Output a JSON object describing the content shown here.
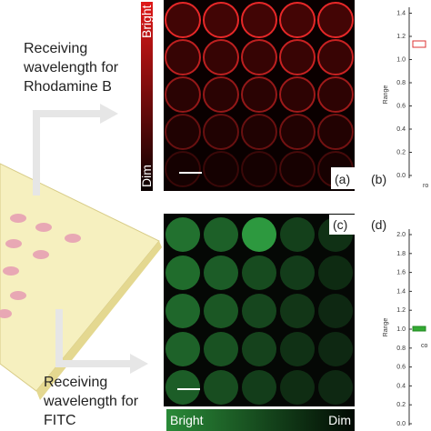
{
  "left_labels": {
    "rhodamine": [
      "Receiving",
      "wavelength for",
      "Rhodamine B"
    ],
    "fitc": [
      "Receiving",
      "wavelength for",
      "FITC"
    ]
  },
  "colorbar_top": {
    "high": "Bright",
    "low": "Dim"
  },
  "colorbar_bottom": {
    "high": "Bright",
    "low": "Dim"
  },
  "panels": {
    "a": "(a)",
    "b": "(b)",
    "c": "(c)",
    "d": "(d)"
  },
  "plot_b": {
    "ylabel": "Range",
    "yticks": [
      "0.0",
      "0.2",
      "0.4",
      "0.6",
      "0.8",
      "1.0",
      "1.2",
      "1.4"
    ],
    "xlabel": "ro"
  },
  "plot_d": {
    "ylabel": "Range",
    "yticks": [
      "0.0",
      "0.2",
      "0.4",
      "0.6",
      "0.8",
      "1.0",
      "1.2",
      "1.4",
      "1.6",
      "1.8",
      "2.0"
    ],
    "xlabel": "co"
  }
}
